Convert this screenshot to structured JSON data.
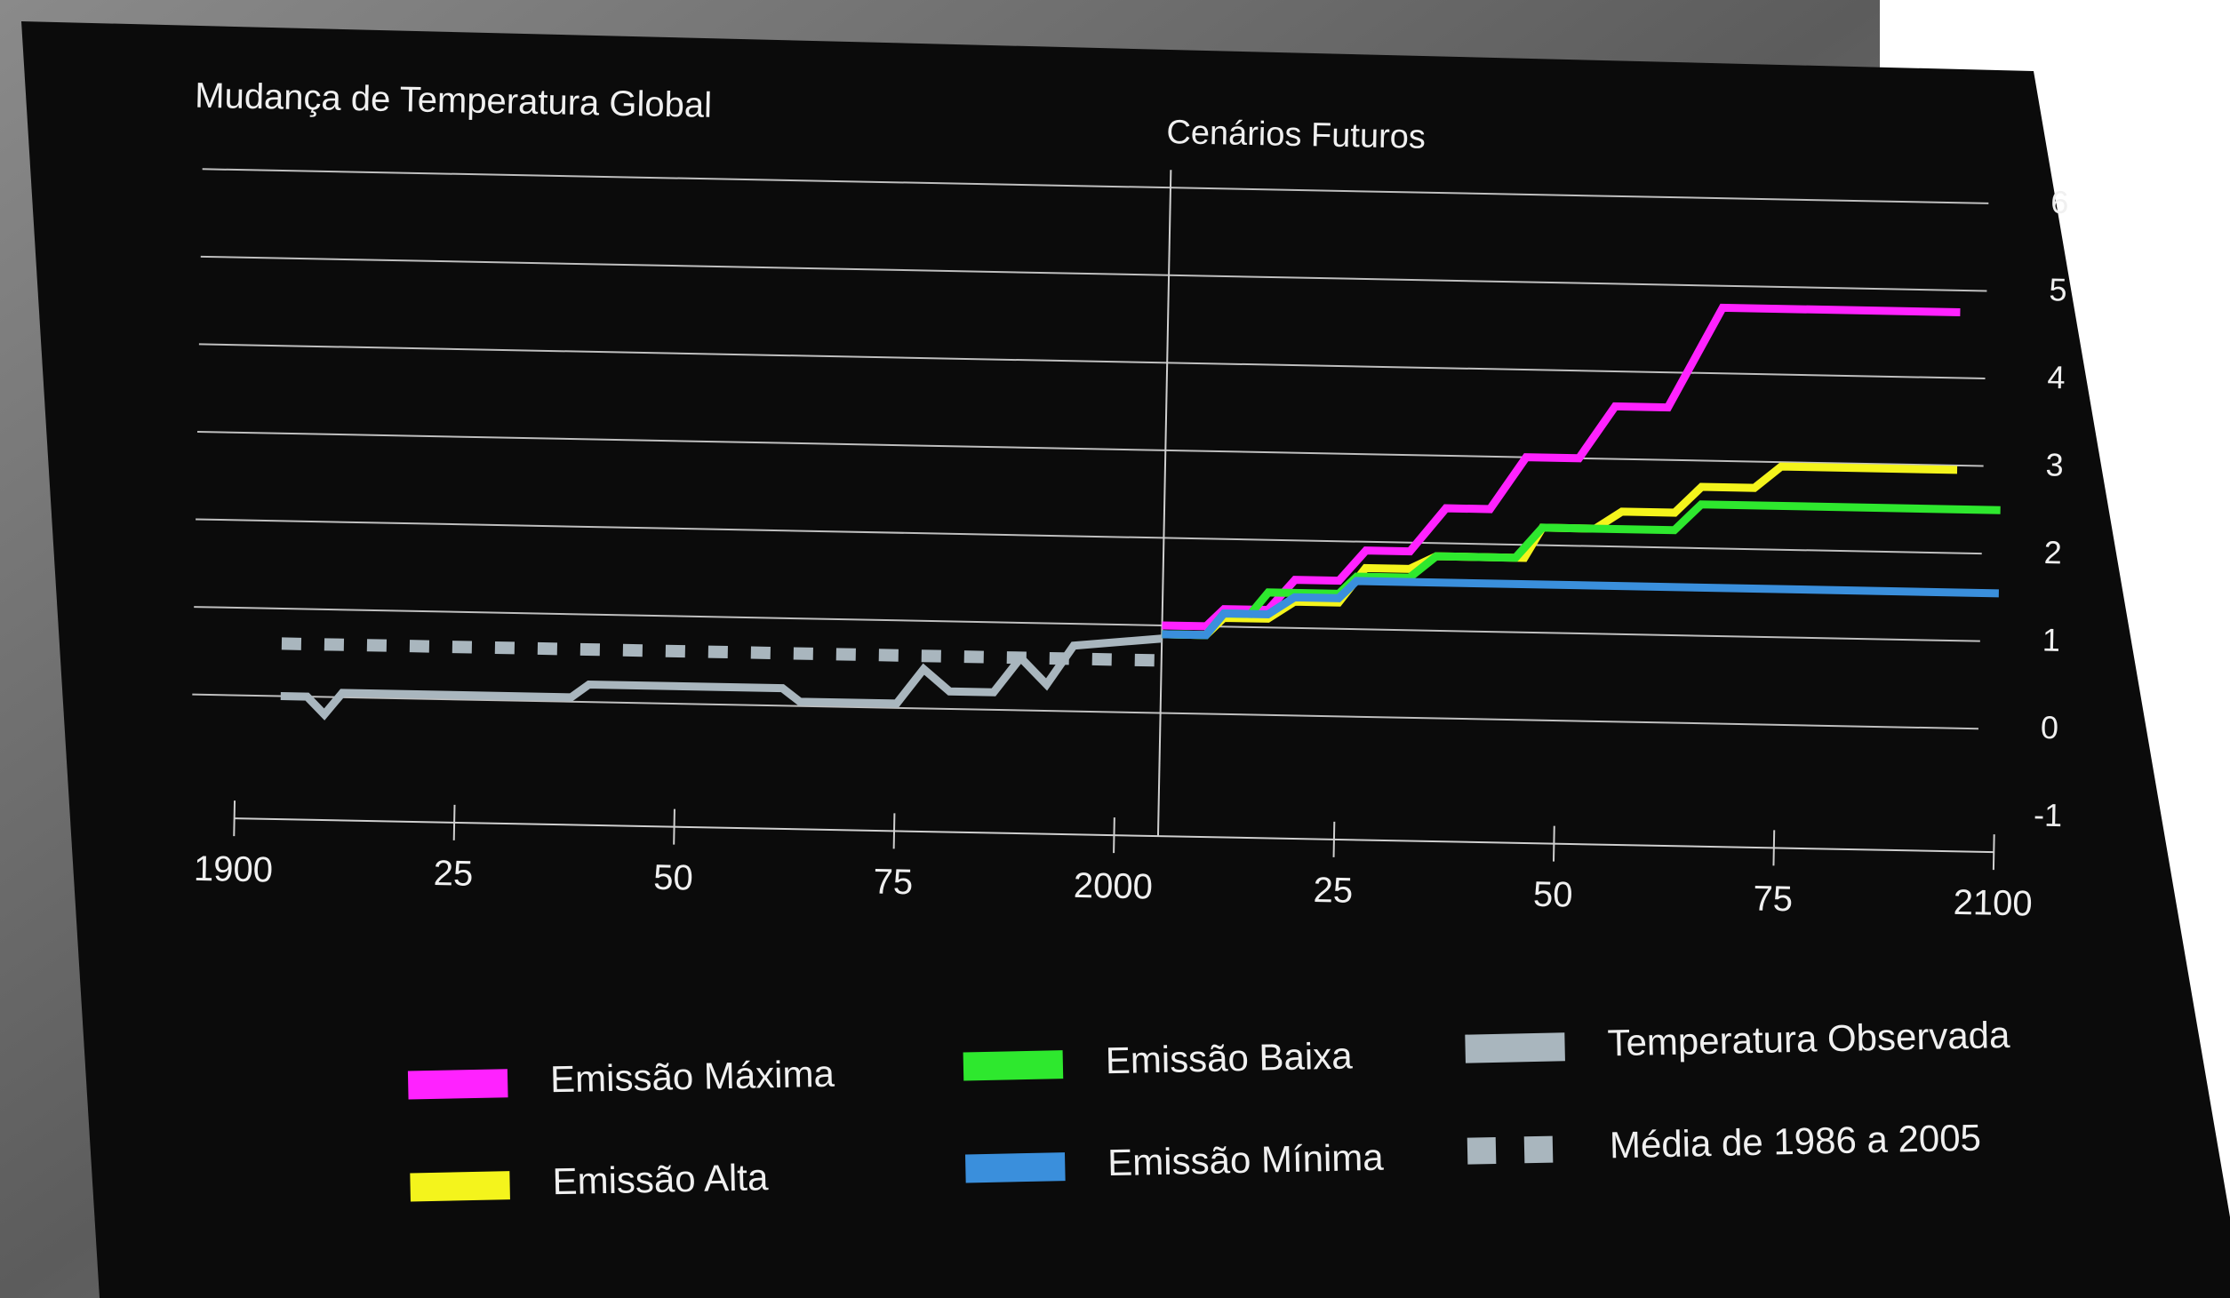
{
  "chart_data": {
    "type": "line",
    "title": "Mudança de Temperatura Global",
    "annotation": {
      "text": "Cenários Futuros",
      "x": 2005
    },
    "xlim": [
      1900,
      2100
    ],
    "xticks": [
      1900,
      {
        "value": 1925,
        "label": "25"
      },
      {
        "value": 1950,
        "label": "50"
      },
      {
        "value": 1975,
        "label": "75"
      },
      2000,
      {
        "value": 2025,
        "label": "25"
      },
      {
        "value": 2050,
        "label": "50"
      },
      {
        "value": 2075,
        "label": "75"
      },
      2100
    ],
    "ylim": [
      -1,
      6
    ],
    "yticks": [
      -1,
      0,
      1,
      2,
      3,
      4,
      5,
      6
    ],
    "grid": true,
    "series": [
      {
        "name": "Emissão Máxima",
        "color": "#ff22ff",
        "x": [
          2005,
          2010,
          2012,
          2017,
          2020,
          2025,
          2028,
          2033,
          2037,
          2042,
          2046,
          2052,
          2056,
          2062,
          2068,
          2095
        ],
        "values": [
          1.0,
          1.0,
          1.2,
          1.2,
          1.55,
          1.55,
          1.9,
          1.9,
          2.4,
          2.4,
          3.0,
          3.0,
          3.6,
          3.6,
          4.75,
          4.75
        ]
      },
      {
        "name": "Emissão Alta",
        "color": "#f4f41c",
        "x": [
          2005,
          2010,
          2012,
          2017,
          2020,
          2025,
          2028,
          2033,
          2036,
          2046,
          2048,
          2054,
          2057,
          2063,
          2066,
          2072,
          2075,
          2095
        ],
        "values": [
          0.9,
          0.9,
          1.1,
          1.1,
          1.3,
          1.3,
          1.7,
          1.7,
          1.85,
          1.85,
          2.2,
          2.2,
          2.4,
          2.4,
          2.7,
          2.7,
          2.95,
          2.95
        ]
      },
      {
        "name": "Emissão Baixa",
        "color": "#2ee82e",
        "x": [
          2005,
          2010,
          2012,
          2015,
          2017,
          2025,
          2027,
          2033,
          2036,
          2045,
          2048,
          2063,
          2066,
          2100
        ],
        "values": [
          0.9,
          0.9,
          1.15,
          1.15,
          1.4,
          1.4,
          1.6,
          1.6,
          1.85,
          1.85,
          2.2,
          2.2,
          2.5,
          2.5
        ]
      },
      {
        "name": "Emissão Mínima",
        "color": "#3a8fdc",
        "x": [
          2005,
          2010,
          2012,
          2017,
          2020,
          2025,
          2027,
          2100
        ],
        "values": [
          0.9,
          0.9,
          1.15,
          1.15,
          1.35,
          1.35,
          1.55,
          1.55
        ]
      },
      {
        "name": "Temperatura Observada",
        "color": "#a9b6be",
        "x": [
          1905,
          1908,
          1910,
          1912,
          1938,
          1940,
          1962,
          1964,
          1975,
          1978,
          1981,
          1986,
          1989,
          1992,
          1995,
          2005
        ],
        "values": [
          0.0,
          0.0,
          -0.2,
          0.05,
          0.05,
          0.2,
          0.2,
          0.05,
          0.05,
          0.45,
          0.2,
          0.2,
          0.6,
          0.3,
          0.75,
          0.85
        ]
      },
      {
        "name": "Média de 1986 a 2005",
        "color": "#a9b6be",
        "dashed": true,
        "x": [
          1905,
          2005
        ],
        "values": [
          0.6,
          0.6
        ]
      }
    ]
  }
}
